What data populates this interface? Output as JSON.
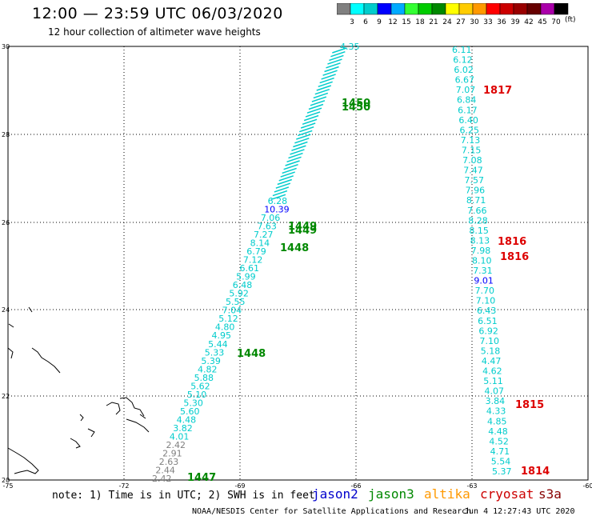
{
  "header": {
    "title": "12:00 — 23:59 UTC 06/03/2020",
    "subtitle": "12 hour collection of altimeter wave heights"
  },
  "colorbar": {
    "unit": "(ft)",
    "ticks": [
      "3",
      "6",
      "9",
      "12",
      "15",
      "18",
      "21",
      "24",
      "27",
      "30",
      "33",
      "36",
      "39",
      "42",
      "45",
      "70"
    ],
    "colors": [
      "#808080",
      "#00ffff",
      "#00cccc",
      "#0000ff",
      "#00aaff",
      "#33ff33",
      "#00cc00",
      "#008800",
      "#ffff00",
      "#ffcc00",
      "#ff9900",
      "#ff0000",
      "#cc0000",
      "#990000",
      "#660000",
      "#aa00aa",
      "#000000"
    ]
  },
  "axes": {
    "lat_labels": [
      "30",
      "28",
      "26",
      "24",
      "22",
      "20"
    ],
    "lon_labels": [
      "-75",
      "-72",
      "-69",
      "-66",
      "-63",
      "-60"
    ]
  },
  "time_labels": [
    {
      "text": "1450",
      "color": "#008800"
    },
    {
      "text": "1450",
      "color": "#008800"
    },
    {
      "text": "1449",
      "color": "#008800"
    },
    {
      "text": "1449",
      "color": "#008800"
    },
    {
      "text": "1448",
      "color": "#008800"
    },
    {
      "text": "1448",
      "color": "#008800"
    },
    {
      "text": "1447",
      "color": "#008800"
    },
    {
      "text": "1817",
      "color": "#dd0000"
    },
    {
      "text": "1816",
      "color": "#dd0000"
    },
    {
      "text": "1816",
      "color": "#dd0000"
    },
    {
      "text": "1815",
      "color": "#dd0000"
    },
    {
      "text": "1814",
      "color": "#dd0000"
    }
  ],
  "track_west": [
    {
      "v": "4.35",
      "c": "#00cccc"
    },
    {
      "v": "6.28",
      "c": "#00cccc"
    },
    {
      "v": "10.39",
      "c": "#0000ff"
    },
    {
      "v": "7.06",
      "c": "#00cccc"
    },
    {
      "v": "7.63",
      "c": "#00cccc"
    },
    {
      "v": "7.27",
      "c": "#00cccc"
    },
    {
      "v": "8.14",
      "c": "#00cccc"
    },
    {
      "v": "6.79",
      "c": "#00cccc"
    },
    {
      "v": "7.12",
      "c": "#00cccc"
    },
    {
      "v": "6.61",
      "c": "#00cccc"
    },
    {
      "v": "5.99",
      "c": "#00cccc"
    },
    {
      "v": "6.48",
      "c": "#00cccc"
    },
    {
      "v": "5.92",
      "c": "#00cccc"
    },
    {
      "v": "5.55",
      "c": "#00cccc"
    },
    {
      "v": "7.04",
      "c": "#00cccc"
    },
    {
      "v": "5.12",
      "c": "#00cccc"
    },
    {
      "v": "4.80",
      "c": "#00cccc"
    },
    {
      "v": "4.95",
      "c": "#00cccc"
    },
    {
      "v": "5.44",
      "c": "#00cccc"
    },
    {
      "v": "5.33",
      "c": "#00cccc"
    },
    {
      "v": "5.39",
      "c": "#00cccc"
    },
    {
      "v": "4.82",
      "c": "#00cccc"
    },
    {
      "v": "5.88",
      "c": "#00cccc"
    },
    {
      "v": "5.62",
      "c": "#00cccc"
    },
    {
      "v": "5.10",
      "c": "#00cccc"
    },
    {
      "v": "5.30",
      "c": "#00cccc"
    },
    {
      "v": "5.60",
      "c": "#00cccc"
    },
    {
      "v": "4.48",
      "c": "#00cccc"
    },
    {
      "v": "3.82",
      "c": "#00cccc"
    },
    {
      "v": "4.01",
      "c": "#00cccc"
    },
    {
      "v": "2.42",
      "c": "#808080"
    },
    {
      "v": "2.91",
      "c": "#808080"
    },
    {
      "v": "2.63",
      "c": "#808080"
    },
    {
      "v": "2.44",
      "c": "#808080"
    },
    {
      "v": "2.42",
      "c": "#808080"
    }
  ],
  "track_east": [
    {
      "v": "6.11",
      "c": "#00cccc"
    },
    {
      "v": "6.12",
      "c": "#00cccc"
    },
    {
      "v": "6.02",
      "c": "#00cccc"
    },
    {
      "v": "6.67",
      "c": "#00cccc"
    },
    {
      "v": "7.07",
      "c": "#00cccc"
    },
    {
      "v": "6.84",
      "c": "#00cccc"
    },
    {
      "v": "6.17",
      "c": "#00cccc"
    },
    {
      "v": "6.40",
      "c": "#00cccc"
    },
    {
      "v": "6.25",
      "c": "#00cccc"
    },
    {
      "v": "7.13",
      "c": "#00cccc"
    },
    {
      "v": "7.15",
      "c": "#00cccc"
    },
    {
      "v": "7.08",
      "c": "#00cccc"
    },
    {
      "v": "7.47",
      "c": "#00cccc"
    },
    {
      "v": "7.57",
      "c": "#00cccc"
    },
    {
      "v": "7.96",
      "c": "#00cccc"
    },
    {
      "v": "8.71",
      "c": "#00cccc"
    },
    {
      "v": "7.66",
      "c": "#00cccc"
    },
    {
      "v": "8.28",
      "c": "#00cccc"
    },
    {
      "v": "8.15",
      "c": "#00cccc"
    },
    {
      "v": "8.13",
      "c": "#00cccc"
    },
    {
      "v": "7.98",
      "c": "#00cccc"
    },
    {
      "v": "8.10",
      "c": "#00cccc"
    },
    {
      "v": "7.31",
      "c": "#00cccc"
    },
    {
      "v": "9.01",
      "c": "#0000ff"
    },
    {
      "v": "7.70",
      "c": "#00cccc"
    },
    {
      "v": "7.10",
      "c": "#00cccc"
    },
    {
      "v": "6.43",
      "c": "#00cccc"
    },
    {
      "v": "6.51",
      "c": "#00cccc"
    },
    {
      "v": "6.92",
      "c": "#00cccc"
    },
    {
      "v": "7.10",
      "c": "#00cccc"
    },
    {
      "v": "5.18",
      "c": "#00cccc"
    },
    {
      "v": "4.47",
      "c": "#00cccc"
    },
    {
      "v": "4.62",
      "c": "#00cccc"
    },
    {
      "v": "5.11",
      "c": "#00cccc"
    },
    {
      "v": "4.07",
      "c": "#00cccc"
    },
    {
      "v": "3.84",
      "c": "#00cccc"
    },
    {
      "v": "4.33",
      "c": "#00cccc"
    },
    {
      "v": "4.85",
      "c": "#00cccc"
    },
    {
      "v": "4.48",
      "c": "#00cccc"
    },
    {
      "v": "4.52",
      "c": "#00cccc"
    },
    {
      "v": "4.71",
      "c": "#00cccc"
    },
    {
      "v": "5.54",
      "c": "#00cccc"
    },
    {
      "v": "5.37",
      "c": "#00cccc"
    }
  ],
  "footer": {
    "note": "note: 1) Time is in UTC; 2) SWH is in feet",
    "legend": [
      {
        "label": "jason2",
        "color": "#0000cc"
      },
      {
        "label": "jason3",
        "color": "#008800"
      },
      {
        "label": "altika",
        "color": "#ff9900"
      },
      {
        "label": "cryosat",
        "color": "#cc0000"
      },
      {
        "label": "s3a",
        "color": "#880000"
      }
    ],
    "credit": "NOAA/NESDIS Center for Satellite Applications and Research",
    "timestamp": "Jun  4 12:27:43 UTC 2020"
  }
}
